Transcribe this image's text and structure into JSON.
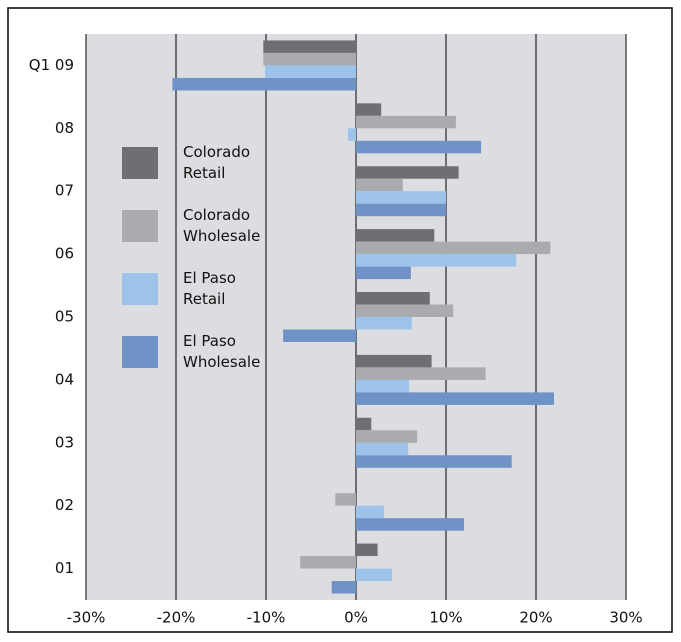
{
  "chart_data": {
    "type": "hbar",
    "categories": [
      "Q1 09",
      "08",
      "07",
      "06",
      "05",
      "04",
      "03",
      "02",
      "01"
    ],
    "series": [
      {
        "name": "Colorado Retail",
        "color": "#6d6f74",
        "values": [
          -10.3,
          2.8,
          11.4,
          8.7,
          8.2,
          8.4,
          1.7,
          0,
          2.4
        ]
      },
      {
        "name": "Colorado Wholesale",
        "color": "#a9abae",
        "values": [
          -10.3,
          11.1,
          5.2,
          21.6,
          10.8,
          14.4,
          6.8,
          -2.3,
          -6.2
        ]
      },
      {
        "name": "El Paso Retail",
        "color": "#9dc3ea",
        "values": [
          -10.1,
          -0.9,
          10,
          17.8,
          6.2,
          5.9,
          5.8,
          3.1,
          4
        ]
      },
      {
        "name": "El Paso Wholesale",
        "color": "#6f93c6",
        "values": [
          -20.4,
          13.9,
          10,
          6.1,
          -8.1,
          22,
          17.3,
          12,
          -2.7
        ]
      }
    ],
    "xlim": [
      -30,
      30
    ],
    "xticks": [
      {
        "value": -30,
        "label": "-30%"
      },
      {
        "value": -20,
        "label": "-20%"
      },
      {
        "value": -10,
        "label": "-10%"
      },
      {
        "value": 0,
        "label": "0%"
      },
      {
        "value": 10,
        "label": "10%"
      },
      {
        "value": 20,
        "label": "20%"
      },
      {
        "value": 30,
        "label": "30%"
      }
    ],
    "grid": true
  }
}
